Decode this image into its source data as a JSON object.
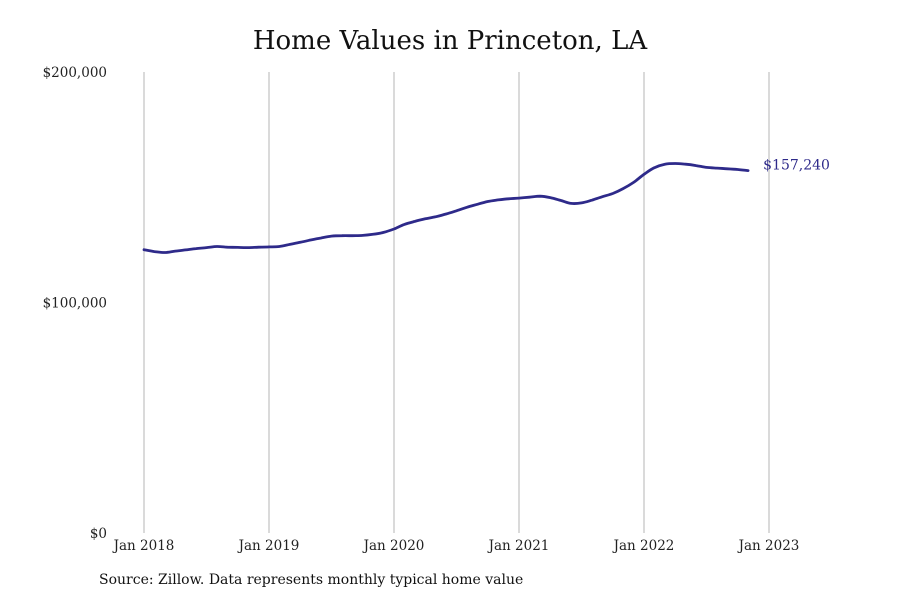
{
  "chart_data": {
    "type": "line",
    "title": "Home Values in Princeton, LA",
    "source": "Source: Zillow. Data represents monthly typical home value",
    "xlabel": "",
    "ylabel": "",
    "ylim": [
      0,
      200000
    ],
    "y_ticks": [
      {
        "value": 0,
        "label": "$0"
      },
      {
        "value": 100000,
        "label": "$100,000"
      },
      {
        "value": 200000,
        "label": "$200,000"
      }
    ],
    "x_ticks": [
      {
        "value": 2018.0,
        "label": "Jan 2018"
      },
      {
        "value": 2019.0,
        "label": "Jan 2019"
      },
      {
        "value": 2020.0,
        "label": "Jan 2020"
      },
      {
        "value": 2021.0,
        "label": "Jan 2021"
      },
      {
        "value": 2022.0,
        "label": "Jan 2022"
      },
      {
        "value": 2023.0,
        "label": "Jan 2023"
      }
    ],
    "grid": "vertical",
    "line_color": "#2e2a8a",
    "series": [
      {
        "end_label": "$157,240",
        "points": [
          [
            2018.0,
            122900
          ],
          [
            2018.083,
            122100
          ],
          [
            2018.167,
            121700
          ],
          [
            2018.25,
            122300
          ],
          [
            2018.333,
            122800
          ],
          [
            2018.417,
            123400
          ],
          [
            2018.5,
            123800
          ],
          [
            2018.583,
            124300
          ],
          [
            2018.667,
            124000
          ],
          [
            2018.75,
            123900
          ],
          [
            2018.833,
            123800
          ],
          [
            2018.917,
            124000
          ],
          [
            2019.0,
            124100
          ],
          [
            2019.083,
            124300
          ],
          [
            2019.167,
            125200
          ],
          [
            2019.25,
            126100
          ],
          [
            2019.333,
            127100
          ],
          [
            2019.417,
            128000
          ],
          [
            2019.5,
            128800
          ],
          [
            2019.583,
            129000
          ],
          [
            2019.667,
            129000
          ],
          [
            2019.75,
            129100
          ],
          [
            2019.833,
            129600
          ],
          [
            2019.917,
            130400
          ],
          [
            2020.0,
            131900
          ],
          [
            2020.083,
            133900
          ],
          [
            2020.167,
            135200
          ],
          [
            2020.25,
            136300
          ],
          [
            2020.333,
            137200
          ],
          [
            2020.417,
            138400
          ],
          [
            2020.5,
            139800
          ],
          [
            2020.583,
            141300
          ],
          [
            2020.667,
            142600
          ],
          [
            2020.75,
            143800
          ],
          [
            2020.833,
            144500
          ],
          [
            2020.917,
            145000
          ],
          [
            2021.0,
            145300
          ],
          [
            2021.083,
            145700
          ],
          [
            2021.167,
            146100
          ],
          [
            2021.25,
            145500
          ],
          [
            2021.333,
            144300
          ],
          [
            2021.417,
            143000
          ],
          [
            2021.5,
            143200
          ],
          [
            2021.583,
            144400
          ],
          [
            2021.667,
            145900
          ],
          [
            2021.75,
            147300
          ],
          [
            2021.833,
            149400
          ],
          [
            2021.917,
            152100
          ],
          [
            2022.0,
            155600
          ],
          [
            2022.083,
            158500
          ],
          [
            2022.167,
            160000
          ],
          [
            2022.25,
            160300
          ],
          [
            2022.333,
            160000
          ],
          [
            2022.417,
            159400
          ],
          [
            2022.5,
            158600
          ],
          [
            2022.583,
            158300
          ],
          [
            2022.667,
            158000
          ],
          [
            2022.75,
            157700
          ],
          [
            2022.833,
            157240
          ]
        ]
      }
    ]
  }
}
